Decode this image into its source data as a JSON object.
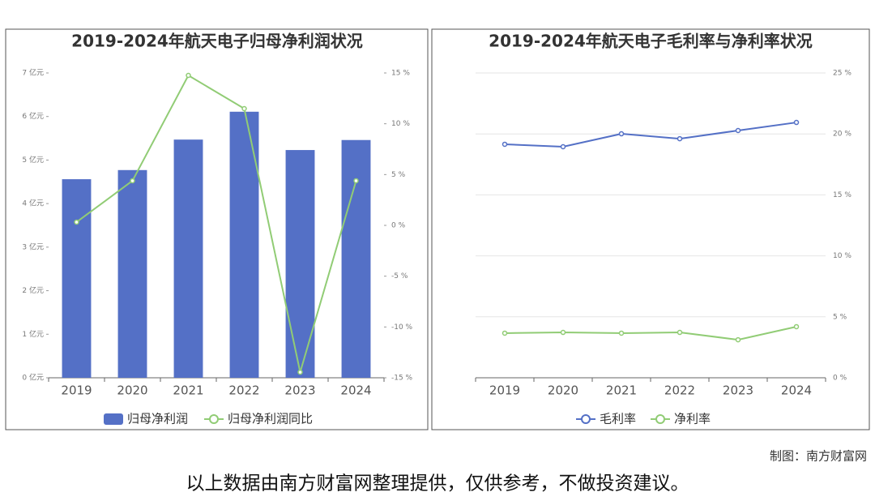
{
  "chart_data": [
    {
      "type": "bar",
      "title": "2019-2024年航天电子归母净利润状况",
      "categories": [
        "2019",
        "2020",
        "2021",
        "2022",
        "2023",
        "2024"
      ],
      "series": [
        {
          "name": "归母净利润",
          "type": "bar",
          "color": "#5470c6",
          "values": [
            4.56,
            4.77,
            5.47,
            6.11,
            5.23,
            5.46
          ]
        },
        {
          "name": "归母净利润同比",
          "type": "line",
          "axis": "y2",
          "color": "#91cc75",
          "values": [
            0.32,
            4.39,
            14.76,
            11.49,
            -14.45,
            4.39
          ]
        }
      ],
      "ylim": [
        0,
        7
      ],
      "yticks": [
        {
          "value": 0,
          "label": "0 亿元"
        },
        {
          "value": 1,
          "label": "1 亿元"
        },
        {
          "value": 2,
          "label": "2 亿元"
        },
        {
          "value": 3,
          "label": "3 亿元"
        },
        {
          "value": 4,
          "label": "4 亿元"
        },
        {
          "value": 5,
          "label": "5 亿元"
        },
        {
          "value": 6,
          "label": "6 亿元"
        },
        {
          "value": 7,
          "label": "7 亿元"
        }
      ],
      "y2lim": [
        -15,
        15
      ],
      "y2ticks": [
        {
          "value": -15,
          "label": "-15 %"
        },
        {
          "value": -10,
          "label": "-10 %"
        },
        {
          "value": -5,
          "label": "-5 %"
        },
        {
          "value": 0,
          "label": "0 %"
        },
        {
          "value": 5,
          "label": "5 %"
        },
        {
          "value": 10,
          "label": "10 %"
        },
        {
          "value": 15,
          "label": "15 %"
        }
      ],
      "grid": false,
      "legend": "bottom"
    },
    {
      "type": "line",
      "title": "2019-2024年航天电子毛利率与净利率状况",
      "categories": [
        "2019",
        "2020",
        "2021",
        "2022",
        "2023",
        "2024"
      ],
      "series": [
        {
          "name": "毛利率",
          "type": "line",
          "axis": "y2",
          "color": "#5470c6",
          "values": [
            19.15,
            18.95,
            20.01,
            19.61,
            20.28,
            20.94
          ]
        },
        {
          "name": "净利率",
          "type": "line",
          "axis": "y2",
          "color": "#91cc75",
          "values": [
            3.66,
            3.72,
            3.66,
            3.72,
            3.12,
            4.19
          ]
        }
      ],
      "y2lim": [
        0,
        25
      ],
      "y2ticks": [
        {
          "value": 0,
          "label": "0 %"
        },
        {
          "value": 5,
          "label": "5 %"
        },
        {
          "value": 10,
          "label": "10 %"
        },
        {
          "value": 15,
          "label": "15 %"
        },
        {
          "value": 20,
          "label": "20 %"
        },
        {
          "value": 25,
          "label": "25 %"
        }
      ],
      "grid": true,
      "legend": "bottom"
    }
  ],
  "credit": "制图：南方财富网",
  "disclaimer": "以上数据由南方财富网整理提供，仅供参考，不做投资建议。"
}
